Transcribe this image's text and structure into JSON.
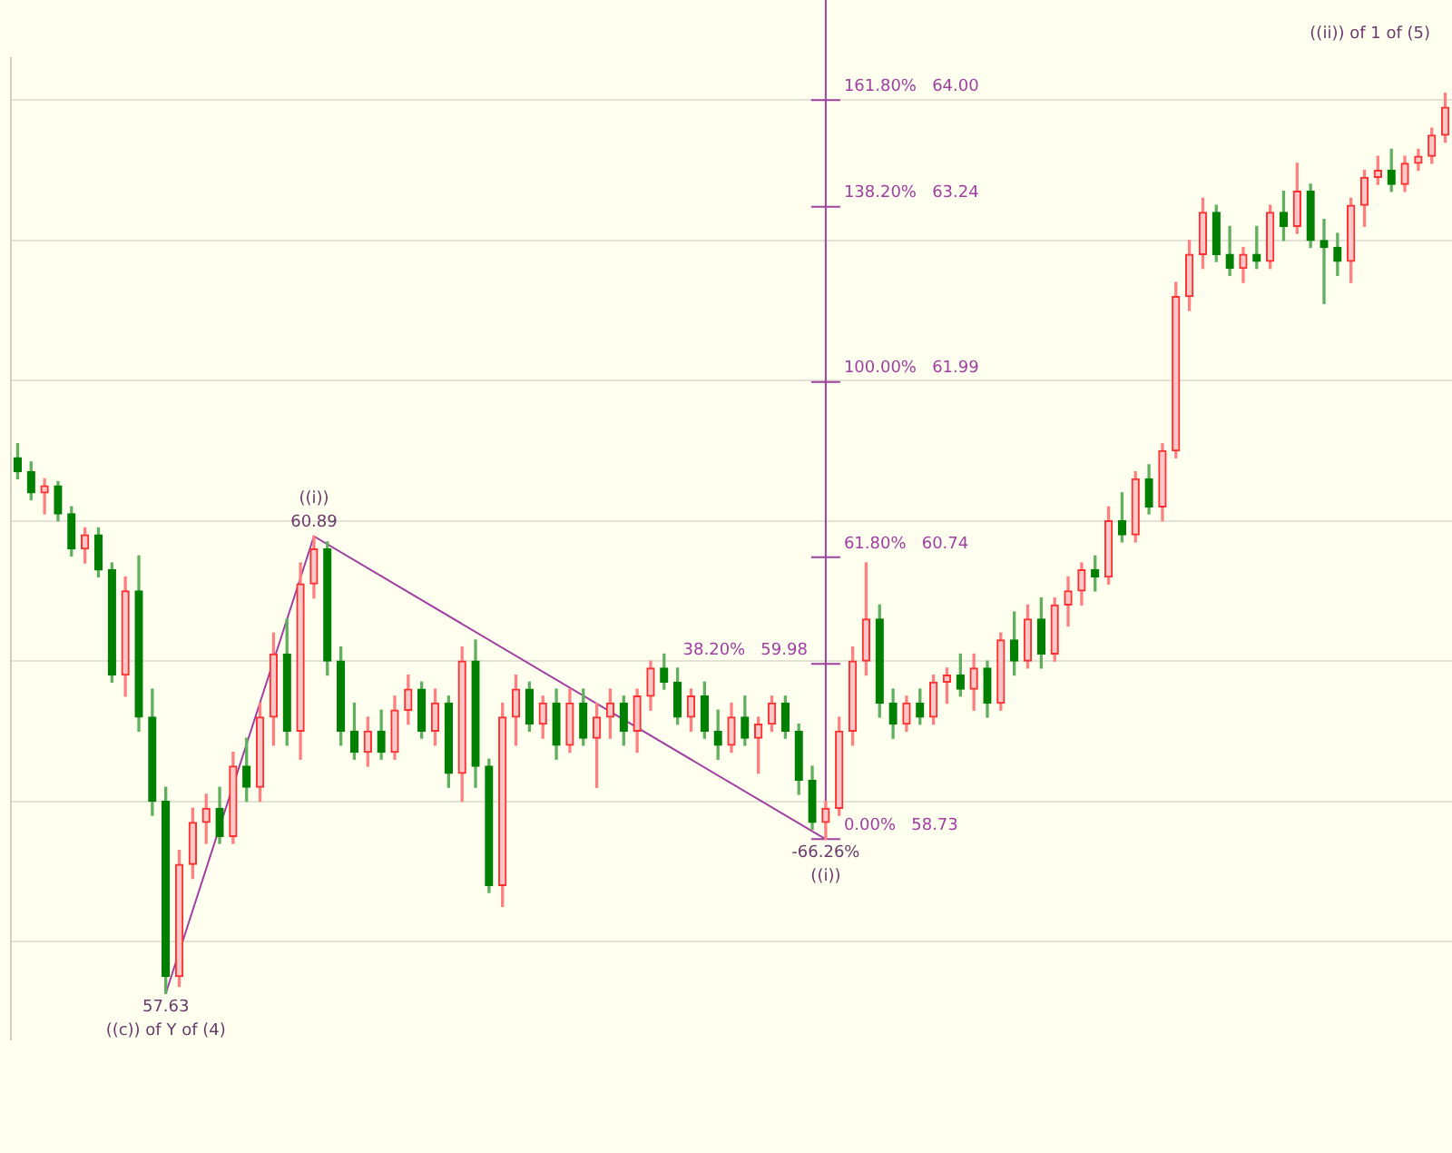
{
  "chart_data": {
    "type": "candlestick",
    "categories": [
      null,
      null,
      null,
      null,
      null,
      null,
      null,
      null,
      null,
      null,
      null,
      null,
      null,
      null,
      null,
      null,
      null,
      null,
      null,
      null,
      null,
      null,
      null,
      null,
      null,
      null,
      null,
      null,
      null,
      null,
      null,
      null,
      null,
      null,
      null,
      null,
      null,
      null,
      null,
      null,
      null,
      null,
      null,
      null,
      null,
      null,
      null,
      null,
      null,
      null,
      null,
      null,
      null,
      null,
      null,
      null,
      null,
      null,
      null,
      null,
      null,
      null,
      null,
      null,
      null,
      null,
      null,
      null,
      null,
      null,
      null,
      null,
      null,
      null,
      null,
      null,
      null,
      null,
      null,
      null,
      null,
      null,
      null,
      null,
      null,
      null,
      null,
      null,
      null,
      null,
      null,
      null,
      null,
      null,
      null,
      null,
      null,
      null,
      null,
      null,
      null,
      null,
      null,
      null,
      null,
      null,
      null
    ],
    "ohlc": [
      [
        61.45,
        61.55,
        61.3,
        61.35
      ],
      [
        61.35,
        61.42,
        61.15,
        61.2
      ],
      [
        61.2,
        61.3,
        61.05,
        61.25
      ],
      [
        61.25,
        61.28,
        61.0,
        61.05
      ],
      [
        61.05,
        61.1,
        60.75,
        60.8
      ],
      [
        60.8,
        60.95,
        60.7,
        60.9
      ],
      [
        60.9,
        60.95,
        60.6,
        60.65
      ],
      [
        60.65,
        60.7,
        59.85,
        59.9
      ],
      [
        59.9,
        60.6,
        59.75,
        60.5
      ],
      [
        60.5,
        60.75,
        59.5,
        59.6
      ],
      [
        59.6,
        59.8,
        58.9,
        59.0
      ],
      [
        59.0,
        59.1,
        57.63,
        57.75
      ],
      [
        57.75,
        58.65,
        57.68,
        58.55
      ],
      [
        58.55,
        58.95,
        58.45,
        58.85
      ],
      [
        58.85,
        59.05,
        58.7,
        58.95
      ],
      [
        58.95,
        59.1,
        58.7,
        58.75
      ],
      [
        58.75,
        59.35,
        58.7,
        59.25
      ],
      [
        59.25,
        59.45,
        59.0,
        59.1
      ],
      [
        59.1,
        59.7,
        59.0,
        59.6
      ],
      [
        59.6,
        60.2,
        59.4,
        60.05
      ],
      [
        60.05,
        60.3,
        59.4,
        59.5
      ],
      [
        59.5,
        60.7,
        59.3,
        60.55
      ],
      [
        60.55,
        60.89,
        60.45,
        60.8
      ],
      [
        60.8,
        60.85,
        59.9,
        60.0
      ],
      [
        60.0,
        60.1,
        59.4,
        59.5
      ],
      [
        59.5,
        59.7,
        59.3,
        59.35
      ],
      [
        59.35,
        59.6,
        59.25,
        59.5
      ],
      [
        59.5,
        59.65,
        59.3,
        59.35
      ],
      [
        59.35,
        59.75,
        59.3,
        59.65
      ],
      [
        59.65,
        59.9,
        59.55,
        59.8
      ],
      [
        59.8,
        59.85,
        59.45,
        59.5
      ],
      [
        59.5,
        59.8,
        59.4,
        59.7
      ],
      [
        59.7,
        59.75,
        59.1,
        59.2
      ],
      [
        59.2,
        60.1,
        59.0,
        60.0
      ],
      [
        60.0,
        60.15,
        59.1,
        59.25
      ],
      [
        59.25,
        59.3,
        58.35,
        58.4
      ],
      [
        58.4,
        59.7,
        58.25,
        59.6
      ],
      [
        59.6,
        59.9,
        59.4,
        59.8
      ],
      [
        59.8,
        59.85,
        59.5,
        59.55
      ],
      [
        59.55,
        59.75,
        59.45,
        59.7
      ],
      [
        59.7,
        59.8,
        59.3,
        59.4
      ],
      [
        59.4,
        59.8,
        59.35,
        59.7
      ],
      [
        59.7,
        59.8,
        59.4,
        59.45
      ],
      [
        59.45,
        59.7,
        59.1,
        59.6
      ],
      [
        59.6,
        59.8,
        59.45,
        59.7
      ],
      [
        59.7,
        59.75,
        59.4,
        59.5
      ],
      [
        59.5,
        59.8,
        59.35,
        59.75
      ],
      [
        59.75,
        60.0,
        59.65,
        59.95
      ],
      [
        59.95,
        60.05,
        59.8,
        59.85
      ],
      [
        59.85,
        59.95,
        59.55,
        59.6
      ],
      [
        59.6,
        59.8,
        59.5,
        59.75
      ],
      [
        59.75,
        59.85,
        59.45,
        59.5
      ],
      [
        59.5,
        59.65,
        59.3,
        59.4
      ],
      [
        59.4,
        59.7,
        59.35,
        59.6
      ],
      [
        59.6,
        59.75,
        59.4,
        59.45
      ],
      [
        59.45,
        59.6,
        59.2,
        59.55
      ],
      [
        59.55,
        59.75,
        59.5,
        59.7
      ],
      [
        59.7,
        59.75,
        59.45,
        59.5
      ],
      [
        59.5,
        59.55,
        59.05,
        59.15
      ],
      [
        59.15,
        59.25,
        58.8,
        58.85
      ],
      [
        58.85,
        59.0,
        58.73,
        58.95
      ],
      [
        58.95,
        59.6,
        58.9,
        59.5
      ],
      [
        59.5,
        60.1,
        59.4,
        60.0
      ],
      [
        60.0,
        60.7,
        59.9,
        60.3
      ],
      [
        60.3,
        60.4,
        59.6,
        59.7
      ],
      [
        59.7,
        59.8,
        59.45,
        59.55
      ],
      [
        59.55,
        59.75,
        59.5,
        59.7
      ],
      [
        59.7,
        59.8,
        59.55,
        59.6
      ],
      [
        59.6,
        59.9,
        59.55,
        59.85
      ],
      [
        59.85,
        59.95,
        59.7,
        59.9
      ],
      [
        59.9,
        60.05,
        59.75,
        59.8
      ],
      [
        59.8,
        60.05,
        59.65,
        59.95
      ],
      [
        59.95,
        60.0,
        59.6,
        59.7
      ],
      [
        59.7,
        60.2,
        59.65,
        60.15
      ],
      [
        60.15,
        60.35,
        59.9,
        60.0
      ],
      [
        60.0,
        60.4,
        59.95,
        60.3
      ],
      [
        60.3,
        60.45,
        59.95,
        60.05
      ],
      [
        60.05,
        60.45,
        60.0,
        60.4
      ],
      [
        60.4,
        60.6,
        60.25,
        60.5
      ],
      [
        60.5,
        60.7,
        60.4,
        60.65
      ],
      [
        60.65,
        60.75,
        60.5,
        60.6
      ],
      [
        60.6,
        61.1,
        60.55,
        61.0
      ],
      [
        61.0,
        61.2,
        60.85,
        60.9
      ],
      [
        60.9,
        61.35,
        60.85,
        61.3
      ],
      [
        61.3,
        61.4,
        61.05,
        61.1
      ],
      [
        61.1,
        61.55,
        61.0,
        61.5
      ],
      [
        61.5,
        62.7,
        61.45,
        62.6
      ],
      [
        62.6,
        63.0,
        62.5,
        62.9
      ],
      [
        62.9,
        63.3,
        62.8,
        63.2
      ],
      [
        63.2,
        63.25,
        62.85,
        62.9
      ],
      [
        62.9,
        63.1,
        62.75,
        62.8
      ],
      [
        62.8,
        62.95,
        62.7,
        62.9
      ],
      [
        62.9,
        63.1,
        62.8,
        62.85
      ],
      [
        62.85,
        63.25,
        62.8,
        63.2
      ],
      [
        63.2,
        63.35,
        63.0,
        63.1
      ],
      [
        63.1,
        63.55,
        63.05,
        63.35
      ],
      [
        63.35,
        63.4,
        62.95,
        63.0
      ],
      [
        63.0,
        63.15,
        62.55,
        62.95
      ],
      [
        62.95,
        63.05,
        62.75,
        62.85
      ],
      [
        62.85,
        63.3,
        62.7,
        63.25
      ],
      [
        63.25,
        63.5,
        63.1,
        63.45
      ],
      [
        63.45,
        63.6,
        63.4,
        63.5
      ],
      [
        63.5,
        63.65,
        63.35,
        63.4
      ],
      [
        63.4,
        63.6,
        63.35,
        63.55
      ],
      [
        63.55,
        63.65,
        63.5,
        63.6
      ],
      [
        63.6,
        63.8,
        63.55,
        63.75
      ],
      [
        63.75,
        64.05,
        63.7,
        63.95
      ]
    ],
    "series": [
      {
        "type": "line",
        "color": "#a040a0",
        "values": [
          null,
          null,
          null,
          null,
          null,
          null,
          null,
          null,
          null,
          null,
          null,
          57.63,
          null,
          null,
          null,
          null,
          null,
          null,
          null,
          null,
          null,
          null,
          60.89,
          null,
          null,
          null,
          null,
          null,
          null,
          null,
          null,
          null,
          null,
          null,
          null,
          null,
          null,
          null,
          null,
          null,
          null,
          null,
          null,
          null,
          null,
          null,
          null,
          null,
          null,
          null,
          null,
          null,
          null,
          null,
          null,
          null,
          null,
          null,
          null,
          null,
          58.73,
          null,
          null,
          null,
          null,
          null,
          null,
          null,
          null,
          null,
          null,
          null,
          null,
          null,
          null,
          null,
          null,
          null,
          null,
          null,
          null,
          null,
          null,
          null,
          null,
          null,
          null,
          null,
          null,
          null,
          null,
          null,
          null,
          null,
          null,
          null,
          null,
          null,
          null,
          null,
          null,
          null,
          null,
          null,
          null,
          null,
          null
        ]
      }
    ],
    "yticks": [
      {
        "value": 58,
        "label": null
      },
      {
        "value": 59,
        "label": null
      },
      {
        "value": 60,
        "label": null
      },
      {
        "value": 61,
        "label": null
      },
      {
        "value": 62,
        "label": null
      },
      {
        "value": 63,
        "label": null
      },
      {
        "value": 64,
        "label": null
      }
    ],
    "ylim": [
      57.3,
      64.3
    ],
    "grid": "y",
    "ref_lines": [
      {
        "axis": "y",
        "value": 64.0,
        "label": "161.80%   64.00",
        "color": "#a040a0"
      },
      {
        "axis": "y",
        "value": 63.24,
        "label": "138.20%   63.24",
        "color": "#a040a0"
      },
      {
        "axis": "y",
        "value": 61.99,
        "label": "100.00%   61.99",
        "color": "#a040a0"
      },
      {
        "axis": "y",
        "value": 60.74,
        "label": "61.80%   60.74",
        "color": "#a040a0"
      },
      {
        "axis": "y",
        "value": 59.98,
        "label": "38.20%   59.98",
        "color": "#a040a0"
      },
      {
        "axis": "y",
        "value": 58.73,
        "label": "0.00%   58.73",
        "color": "#a040a0"
      }
    ],
    "annotations": [
      {
        "text": "((i))",
        "y": 60.89
      },
      {
        "text": "60.89",
        "y": 60.89
      },
      {
        "text": "57.63",
        "y": 57.63
      },
      {
        "text": "((c)) of Y of (4)",
        "y": 57.63
      },
      {
        "text": "-66.26%",
        "y": 58.73
      },
      {
        "text": "((i))",
        "y": 58.73
      },
      "((ii)) of 1 of (5)"
    ]
  }
}
